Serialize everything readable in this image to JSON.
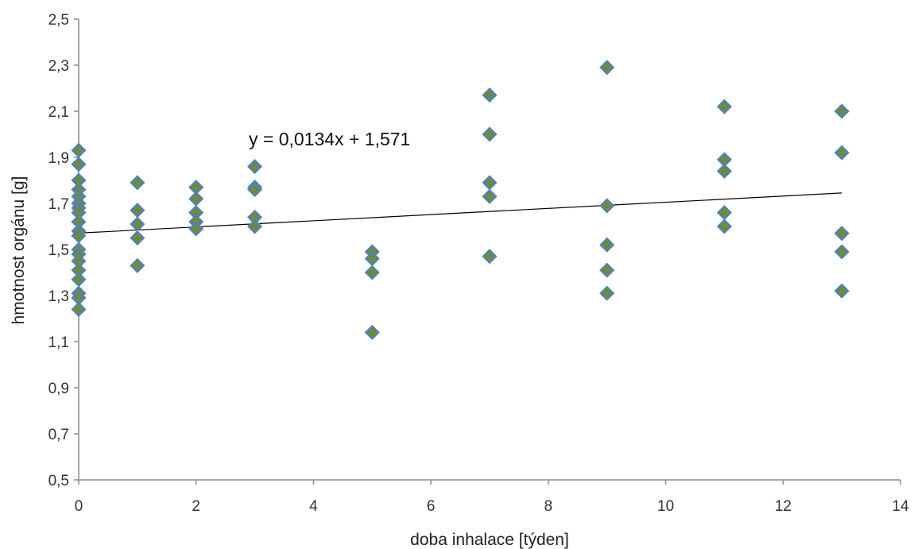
{
  "chart_data": {
    "type": "scatter",
    "xlabel": "doba inhalace [týden]",
    "ylabel": "hmotnost orgánu [g]",
    "xlim": [
      0,
      14
    ],
    "ylim": [
      0.5,
      2.5
    ],
    "x_ticks": [
      0,
      2,
      4,
      6,
      8,
      10,
      12,
      14
    ],
    "y_ticks": [
      0.5,
      0.7,
      0.9,
      1.1,
      1.3,
      1.5,
      1.7,
      1.9,
      2.1,
      2.3,
      2.5
    ],
    "x_tick_labels": [
      "0",
      "2",
      "4",
      "6",
      "8",
      "10",
      "12",
      "14"
    ],
    "y_tick_labels": [
      "0,5",
      "0,7",
      "0,9",
      "1,1",
      "1,3",
      "1,5",
      "1,7",
      "1,9",
      "2,1",
      "2,3",
      "2,5"
    ],
    "grid": false,
    "legend": "none",
    "marker": {
      "shape": "diamond",
      "fill": "#6e8a3c",
      "stroke": "#4f81bd"
    },
    "trendline": {
      "label": "y = 0,0134x + 1,571",
      "slope": 0.0134,
      "intercept": 1.571,
      "x_range": [
        0,
        13
      ],
      "color": "#000000"
    },
    "points": [
      {
        "x": 0,
        "y": 1.93
      },
      {
        "x": 0,
        "y": 1.87
      },
      {
        "x": 0,
        "y": 1.8
      },
      {
        "x": 0,
        "y": 1.76
      },
      {
        "x": 0,
        "y": 1.73
      },
      {
        "x": 0,
        "y": 1.7
      },
      {
        "x": 0,
        "y": 1.68
      },
      {
        "x": 0,
        "y": 1.66
      },
      {
        "x": 0,
        "y": 1.62
      },
      {
        "x": 0,
        "y": 1.58
      },
      {
        "x": 0,
        "y": 1.56
      },
      {
        "x": 0,
        "y": 1.5
      },
      {
        "x": 0,
        "y": 1.48
      },
      {
        "x": 0,
        "y": 1.45
      },
      {
        "x": 0,
        "y": 1.41
      },
      {
        "x": 0,
        "y": 1.37
      },
      {
        "x": 0,
        "y": 1.31
      },
      {
        "x": 0,
        "y": 1.29
      },
      {
        "x": 0,
        "y": 1.24
      },
      {
        "x": 1,
        "y": 1.79
      },
      {
        "x": 1,
        "y": 1.67
      },
      {
        "x": 1,
        "y": 1.61
      },
      {
        "x": 1,
        "y": 1.55
      },
      {
        "x": 1,
        "y": 1.43
      },
      {
        "x": 2,
        "y": 1.77
      },
      {
        "x": 2,
        "y": 1.72
      },
      {
        "x": 2,
        "y": 1.66
      },
      {
        "x": 2,
        "y": 1.62
      },
      {
        "x": 2,
        "y": 1.59
      },
      {
        "x": 3,
        "y": 1.86
      },
      {
        "x": 3,
        "y": 1.77
      },
      {
        "x": 3,
        "y": 1.76
      },
      {
        "x": 3,
        "y": 1.64
      },
      {
        "x": 3,
        "y": 1.6
      },
      {
        "x": 5,
        "y": 1.49
      },
      {
        "x": 5,
        "y": 1.46
      },
      {
        "x": 5,
        "y": 1.4
      },
      {
        "x": 5,
        "y": 1.14
      },
      {
        "x": 7,
        "y": 2.17
      },
      {
        "x": 7,
        "y": 2.0
      },
      {
        "x": 7,
        "y": 1.79
      },
      {
        "x": 7,
        "y": 1.73
      },
      {
        "x": 7,
        "y": 1.47
      },
      {
        "x": 9,
        "y": 2.29
      },
      {
        "x": 9,
        "y": 1.69
      },
      {
        "x": 9,
        "y": 1.52
      },
      {
        "x": 9,
        "y": 1.41
      },
      {
        "x": 9,
        "y": 1.31
      },
      {
        "x": 11,
        "y": 2.12
      },
      {
        "x": 11,
        "y": 1.89
      },
      {
        "x": 11,
        "y": 1.84
      },
      {
        "x": 11,
        "y": 1.66
      },
      {
        "x": 11,
        "y": 1.6
      },
      {
        "x": 13,
        "y": 2.1
      },
      {
        "x": 13,
        "y": 1.92
      },
      {
        "x": 13,
        "y": 1.57
      },
      {
        "x": 13,
        "y": 1.49
      },
      {
        "x": 13,
        "y": 1.32
      }
    ]
  }
}
